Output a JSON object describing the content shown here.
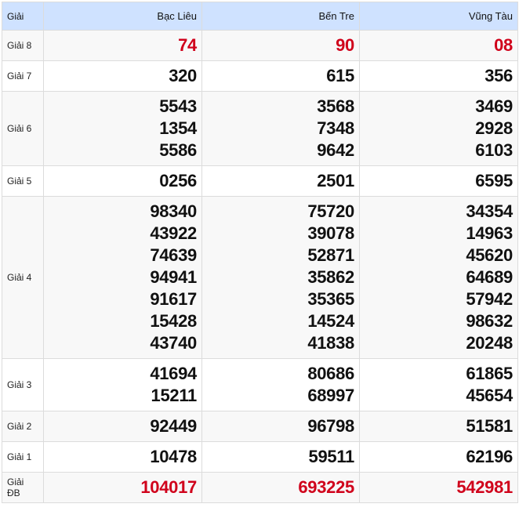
{
  "header": {
    "prize": "Giải",
    "provinces": [
      "Bạc Liêu",
      "Bến Tre",
      "Vũng Tàu"
    ]
  },
  "colors": {
    "highlight": "#d0021b",
    "header_bg": "#cfe2ff"
  },
  "rows": [
    {
      "label": "Giải 8",
      "highlight": true,
      "values": [
        [
          "74"
        ],
        [
          "90"
        ],
        [
          "08"
        ]
      ]
    },
    {
      "label": "Giải 7",
      "values": [
        [
          "320"
        ],
        [
          "615"
        ],
        [
          "356"
        ]
      ]
    },
    {
      "label": "Giải 6",
      "values": [
        [
          "5543",
          "1354",
          "5586"
        ],
        [
          "3568",
          "7348",
          "9642"
        ],
        [
          "3469",
          "2928",
          "6103"
        ]
      ]
    },
    {
      "label": "Giải 5",
      "values": [
        [
          "0256"
        ],
        [
          "2501"
        ],
        [
          "6595"
        ]
      ]
    },
    {
      "label": "Giải 4",
      "values": [
        [
          "98340",
          "43922",
          "74639",
          "94941",
          "91617",
          "15428",
          "43740"
        ],
        [
          "75720",
          "39078",
          "52871",
          "35862",
          "35365",
          "14524",
          "41838"
        ],
        [
          "34354",
          "14963",
          "45620",
          "64689",
          "57942",
          "98632",
          "20248"
        ]
      ]
    },
    {
      "label": "Giải 3",
      "values": [
        [
          "41694",
          "15211"
        ],
        [
          "80686",
          "68997"
        ],
        [
          "61865",
          "45654"
        ]
      ]
    },
    {
      "label": "Giải 2",
      "values": [
        [
          "92449"
        ],
        [
          "96798"
        ],
        [
          "51581"
        ]
      ]
    },
    {
      "label": "Giải 1",
      "values": [
        [
          "10478"
        ],
        [
          "59511"
        ],
        [
          "62196"
        ]
      ]
    },
    {
      "label": "Giải ĐB",
      "highlight": true,
      "values": [
        [
          "104017"
        ],
        [
          "693225"
        ],
        [
          "542981"
        ]
      ]
    }
  ]
}
